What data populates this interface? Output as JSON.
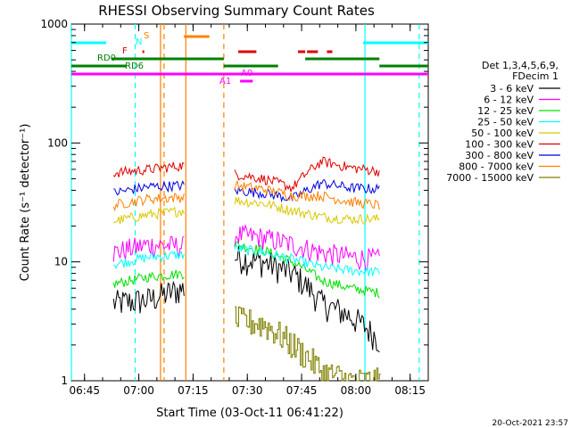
{
  "chart_data": {
    "type": "line",
    "title": "RHESSI Observing Summary Count Rates",
    "xlabel": "Start Time (03-Oct-11 06:41:22)",
    "ylabel": "Count Rate (s⁻¹ detector⁻¹)",
    "yscale": "log",
    "ylim": [
      1,
      1000
    ],
    "xlim": [
      "06:41:22",
      "08:20:00"
    ],
    "x_ticks": [
      "06:45",
      "07:00",
      "07:15",
      "07:30",
      "07:45",
      "08:00",
      "08:15"
    ],
    "y_ticks": [
      "1",
      "10",
      "100",
      "1000"
    ],
    "legend": {
      "placement": "right",
      "header": [
        "Det 1,3,4,5,6,9,",
        "FDecim 1"
      ],
      "entries": [
        {
          "label": "3 - 6 keV",
          "color": "#000000"
        },
        {
          "label": "6 - 12 keV",
          "color": "#ff00ff"
        },
        {
          "label": "12 - 25 keV",
          "color": "#00e000"
        },
        {
          "label": "25 - 50 keV",
          "color": "#00ffff"
        },
        {
          "label": "50 - 100 keV",
          "color": "#d8c800"
        },
        {
          "label": "100 - 300 keV",
          "color": "#e00000"
        },
        {
          "label": "300 - 800 keV",
          "color": "#0000e0"
        },
        {
          "label": "800 - 7000 keV",
          "color": "#ff8000"
        },
        {
          "label": "7000 - 15000 keV",
          "color": "#808000"
        }
      ]
    },
    "flag_labels": [
      {
        "text": "F",
        "color": "#e00000"
      },
      {
        "text": "S",
        "color": "#ff8000"
      },
      {
        "text": "N",
        "color": "#00ffff"
      },
      {
        "text": "RD0",
        "color": "#008000"
      },
      {
        "text": "RD6",
        "color": "#008000"
      },
      {
        "text": "A0",
        "color": "#ff00ff"
      },
      {
        "text": "A1",
        "color": "#ff00ff"
      }
    ],
    "flag_bars": [
      {
        "name": "N",
        "color": "#00ffff",
        "ranges": [
          [
            "06:41:22",
            "06:51:00"
          ],
          [
            "08:02:00",
            "08:20:00"
          ]
        ]
      },
      {
        "name": "S",
        "color": "#ff8000",
        "ranges": [
          [
            "07:12:30",
            "07:19:30"
          ]
        ]
      },
      {
        "name": "F",
        "color": "#e00000",
        "ranges": [
          [
            "07:01:00",
            "07:01:30"
          ],
          [
            "07:27:30",
            "07:32:30"
          ],
          [
            "07:44:00",
            "07:46:00"
          ],
          [
            "07:46:30",
            "07:49:30"
          ],
          [
            "07:52:00",
            "07:53:30"
          ]
        ]
      },
      {
        "name": "RD0",
        "color": "#008000",
        "ranges": [
          [
            "06:52:30",
            "07:23:30"
          ],
          [
            "07:46:00",
            "08:06:30"
          ]
        ]
      },
      {
        "name": "RD6",
        "color": "#008000",
        "ranges": [
          [
            "06:41:22",
            "06:56:30"
          ],
          [
            "07:23:30",
            "07:38:30"
          ],
          [
            "08:06:30",
            "08:20:00"
          ]
        ]
      },
      {
        "name": "A0",
        "color": "#ff00ff",
        "ranges": [
          [
            "06:41:22",
            "08:20:00"
          ]
        ]
      },
      {
        "name": "A1",
        "color": "#ff00ff",
        "ranges": [
          [
            "07:28:00",
            "07:31:30"
          ]
        ]
      }
    ],
    "vertical_markers": [
      {
        "time": "06:41:22",
        "color": "#00ffff",
        "style": "solid"
      },
      {
        "time": "06:59:00",
        "color": "#00ffff",
        "style": "dashed"
      },
      {
        "time": "07:06:00",
        "color": "#ff8000",
        "style": "solid"
      },
      {
        "time": "07:07:00",
        "color": "#ff8000",
        "style": "dashed"
      },
      {
        "time": "07:13:00",
        "color": "#ff8000",
        "style": "solid"
      },
      {
        "time": "07:23:30",
        "color": "#ff8000",
        "style": "dashed"
      },
      {
        "time": "08:02:30",
        "color": "#00ffff",
        "style": "solid"
      },
      {
        "time": "08:17:30",
        "color": "#00ffff",
        "style": "dashed"
      }
    ],
    "segments": [
      [
        "06:53:00",
        "07:12:30"
      ],
      [
        "07:26:30",
        "08:06:30"
      ]
    ],
    "series": [
      {
        "name": "3 - 6 keV",
        "color": "#000000",
        "values": [
          [
            4.5,
            4.8,
            6.0
          ],
          [
            11.0,
            10.0,
            8.0,
            4.5,
            3.5,
            2.2
          ]
        ]
      },
      {
        "name": "6 - 12 keV",
        "color": "#ff00ff",
        "values": [
          [
            12,
            14,
            13.5
          ],
          [
            17,
            16,
            14,
            12,
            11,
            10.5
          ]
        ]
      },
      {
        "name": "12 - 25 keV",
        "color": "#00e000",
        "values": [
          [
            6.5,
            7.5,
            8.0
          ],
          [
            14,
            12.5,
            10,
            7,
            6,
            5.5
          ]
        ]
      },
      {
        "name": "25 - 50 keV",
        "color": "#00ffff",
        "values": [
          [
            9.5,
            11,
            11.5
          ],
          [
            13,
            12,
            10.5,
            9,
            8.5,
            8.2
          ]
        ]
      },
      {
        "name": "50 - 100 keV",
        "color": "#d8c800",
        "values": [
          [
            22,
            25,
            27
          ],
          [
            33,
            31,
            27,
            24,
            23,
            23
          ]
        ]
      },
      {
        "name": "100 - 300 keV",
        "color": "#e00000",
        "values": [
          [
            56,
            60,
            65
          ],
          [
            55,
            50,
            42,
            70,
            62,
            58
          ]
        ]
      },
      {
        "name": "300 - 800 keV",
        "color": "#0000e0",
        "values": [
          [
            38,
            43,
            44
          ],
          [
            40,
            38,
            34,
            46,
            42,
            41
          ]
        ]
      },
      {
        "name": "800 - 7000 keV",
        "color": "#ff8000",
        "values": [
          [
            30,
            34,
            35
          ],
          [
            44,
            41,
            36,
            36,
            32,
            30
          ]
        ]
      },
      {
        "name": "7000 - 15000 keV",
        "color": "#808000",
        "values": [
          [
            null,
            null,
            null
          ],
          [
            3.3,
            3.0,
            2.0,
            1.2,
            1.0,
            1.0
          ]
        ]
      }
    ]
  },
  "footer": {
    "date": "20-Oct-2021 23:57"
  }
}
